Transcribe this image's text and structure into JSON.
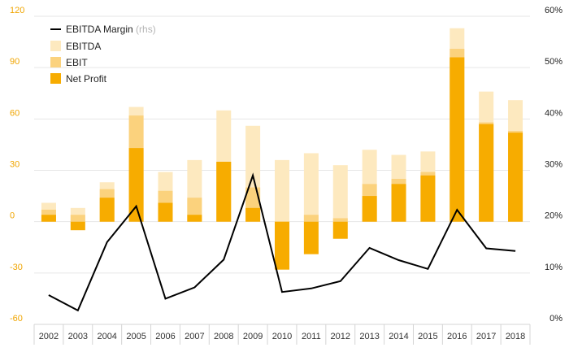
{
  "chart_data": {
    "type": "bar",
    "stacked": false,
    "categories": [
      "2002",
      "2003",
      "2004",
      "2005",
      "2006",
      "2007",
      "2008",
      "2009",
      "2010",
      "2011",
      "2012",
      "2013",
      "2014",
      "2015",
      "2016",
      "2017",
      "2018"
    ],
    "series": [
      {
        "name": "EBITDA",
        "kind": "bar",
        "axis": "left",
        "values": [
          11,
          8,
          23,
          67,
          29,
          36,
          65,
          56,
          36,
          40,
          33,
          42,
          39,
          41,
          113,
          76,
          71
        ]
      },
      {
        "name": "EBIT",
        "kind": "bar",
        "axis": "left",
        "values": [
          7,
          4,
          19,
          62,
          18,
          14,
          35,
          20,
          -28,
          4,
          2,
          22,
          25,
          29,
          101,
          58,
          53
        ]
      },
      {
        "name": "Net Profit",
        "kind": "bar",
        "axis": "left",
        "values": [
          4,
          -5,
          14,
          43,
          11,
          4,
          35,
          8,
          -28,
          -19,
          -10,
          15,
          22,
          27,
          96,
          57,
          52
        ]
      },
      {
        "name": "EBITDA Margin",
        "note": "(rhs)",
        "kind": "line",
        "axis": "right",
        "values": [
          5.7,
          2.7,
          16.0,
          23.0,
          5.0,
          7.2,
          12.6,
          29.0,
          6.3,
          7.0,
          8.4,
          14.9,
          12.5,
          10.8,
          22.3,
          14.8,
          14.3
        ]
      }
    ],
    "yleft": {
      "lim": [
        -60,
        120
      ],
      "ticks": [
        -60,
        -30,
        0,
        30,
        60,
        90,
        120
      ],
      "color": "#f0a500"
    },
    "yright": {
      "lim": [
        0,
        60
      ],
      "ticks": [
        "0%",
        "10%",
        "20%",
        "30%",
        "40%",
        "50%",
        "60%"
      ]
    },
    "grid": true,
    "legend_position": "top-left",
    "colors": {
      "EBITDA": "#fde9bf",
      "EBIT": "#fbd27d",
      "Net Profit": "#f7ac00",
      "EBITDA Margin": "#000000"
    }
  }
}
